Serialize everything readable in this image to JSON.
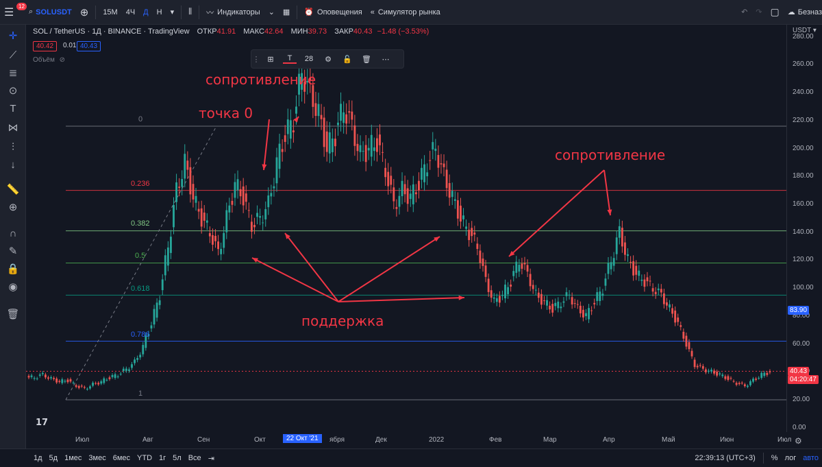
{
  "topbar": {
    "notifications": "12",
    "symbol": "SOLUSDT",
    "timeframes": [
      "15М",
      "4Ч",
      "Д",
      "Н"
    ],
    "indicators": "Индикаторы",
    "alerts": "Оповещения",
    "replay": "Симулятор рынка",
    "no_name": "Безназ"
  },
  "legend": {
    "title": "SOL / TetherUS · 1Д · BINANCE · TradingView",
    "open_label": "ОТКР",
    "open": "41.91",
    "high_label": "МАКС",
    "high": "42.64",
    "low_label": "МИН",
    "low": "39.73",
    "close_label": "ЗАКР",
    "close": "40.43",
    "change": "−1.48 (−3.53%)",
    "bid": "40.42",
    "spread": "0.01",
    "ask": "40.43",
    "volume_label": "Объём"
  },
  "drawing_toolbar": {
    "font_size": "28"
  },
  "annotations": {
    "resist1": "сопротивление",
    "point0": "точка 0",
    "resist2": "сопротивление",
    "support": "поддержка"
  },
  "fib": {
    "levels": [
      {
        "label": "0",
        "value": 216,
        "color": "#787b86"
      },
      {
        "label": "0.236",
        "value": 170,
        "color": "#f23645"
      },
      {
        "label": "0.382",
        "value": 141,
        "color": "#81c784"
      },
      {
        "label": "0.5",
        "value": 118,
        "color": "#4caf50"
      },
      {
        "label": "0.618",
        "value": 95,
        "color": "#089981"
      },
      {
        "label": "0.786",
        "value": 62,
        "color": "#2962ff"
      },
      {
        "label": "1",
        "value": 20,
        "color": "#787b86"
      }
    ]
  },
  "price_scale": {
    "currency": "USDT",
    "ticks": [
      "280.00",
      "260.00",
      "240.00",
      "220.00",
      "200.00",
      "180.00",
      "160.00",
      "140.00",
      "120.00",
      "100.00",
      "80.00",
      "60.00",
      "40.00",
      "20.00",
      "0.00"
    ],
    "ticks_v": [
      280,
      260,
      240,
      220,
      200,
      180,
      160,
      140,
      120,
      100,
      80,
      60,
      40,
      20,
      0
    ],
    "marker_price": "83.90",
    "current_price": "40.43",
    "countdown": "04:20:47"
  },
  "time_axis": {
    "labels": [
      "Июл",
      "Авг",
      "Сен",
      "Окт",
      "22 Окт '21",
      "ября",
      "Дек",
      "2022",
      "Фев",
      "Мар",
      "Апр",
      "Май",
      "Июн",
      "Июл"
    ]
  },
  "bottombar": {
    "ranges": [
      "1д",
      "5д",
      "1мес",
      "3мес",
      "6мес",
      "YTD",
      "1г",
      "5л",
      "Все"
    ],
    "clock": "22:39:13 (UTC+3)",
    "percent": "%",
    "log": "лог",
    "auto": "авто"
  },
  "chart_data": {
    "type": "candlestick",
    "closes": [
      36,
      38,
      35,
      33,
      34,
      30,
      28,
      31,
      33,
      36,
      38,
      42,
      47,
      58,
      75,
      95,
      130,
      170,
      190,
      165,
      150,
      140,
      125,
      150,
      175,
      165,
      145,
      150,
      160,
      190,
      210,
      220,
      255,
      240,
      225,
      200,
      210,
      230,
      215,
      195,
      200,
      205,
      185,
      160,
      170,
      165,
      175,
      190,
      200,
      180,
      165,
      150,
      140,
      130,
      105,
      90,
      95,
      105,
      120,
      110,
      95,
      90,
      85,
      90,
      95,
      85,
      80,
      90,
      100,
      120,
      140,
      120,
      110,
      105,
      100,
      95,
      85,
      75,
      60,
      45,
      42,
      40,
      38,
      35,
      32,
      30,
      34,
      38,
      40
    ]
  }
}
